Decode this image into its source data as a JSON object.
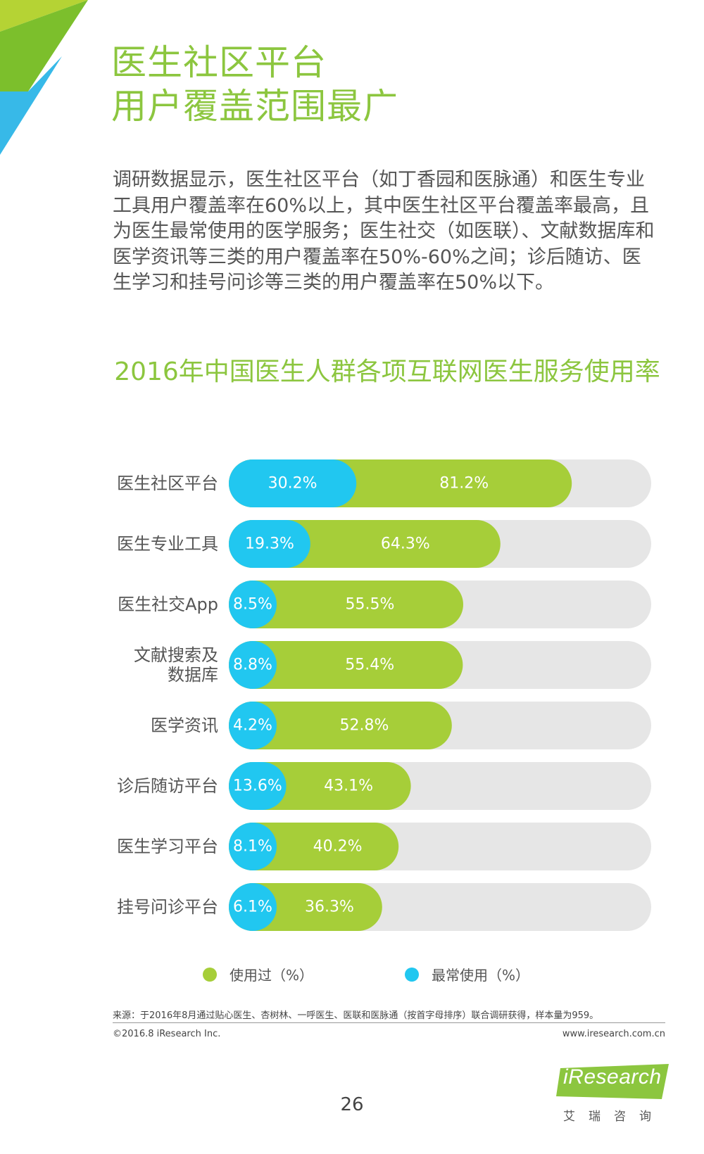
{
  "page": {
    "title_line1": "医生社区平台",
    "title_line2": "用户覆盖范围最广",
    "description": "调研数据显示，医生社区平台（如丁香园和医脉通）和医生专业工具用户覆盖率在60%以上，其中医生社区平台覆盖率最高，且为医生最常使用的医学服务；医生社交（如医联）、文献数据库和医学资讯等三类的用户覆盖率在50%-60%之间；诊后随访、医生学习和挂号问诊等三类的用户覆盖率在50%以下。",
    "chart_title": "2016年中国医生人群各项互联网医生服务使用率",
    "source": "来源：于2016年8月通过贴心医生、杏树林、一呼医生、医联和医脉通（按首字母排序）联合调研获得，样本量为959。",
    "copyright": "©2016.8 iResearch Inc.",
    "website": "www.iresearch.com.cn",
    "page_number": "26",
    "logo_text": "iResearch",
    "logo_subtext": "艾瑞咨询"
  },
  "colors": {
    "green": "#a6ce39",
    "blue": "#21c7f0",
    "track": "#e6e6e6",
    "title_green": "#8cc63f",
    "corner_light_green": "#b5d334",
    "corner_dark_green": "#7cbf2c",
    "corner_blue": "#37b9e8"
  },
  "chart_data": {
    "type": "bar",
    "orientation": "horizontal",
    "categories": [
      "医生社区平台",
      "医生专业工具",
      "医生社交App",
      "文献搜索及数据库",
      "医学资讯",
      "诊后随访平台",
      "医生学习平台",
      "挂号问诊平台"
    ],
    "category_lines": [
      [
        "医生社区平台"
      ],
      [
        "医生专业工具"
      ],
      [
        "医生社交App"
      ],
      [
        "文献搜索及",
        "数据库"
      ],
      [
        "医学资讯"
      ],
      [
        "诊后随访平台"
      ],
      [
        "医生学习平台"
      ],
      [
        "挂号问诊平台"
      ]
    ],
    "series": [
      {
        "name": "使用过（%）",
        "values": [
          81.2,
          64.3,
          55.5,
          55.4,
          52.8,
          43.1,
          40.2,
          36.3
        ],
        "labels": [
          "81.2%",
          "64.3%",
          "55.5%",
          "55.4%",
          "52.8%",
          "43.1%",
          "40.2%",
          "36.3%"
        ],
        "color": "#a6ce39"
      },
      {
        "name": "最常使用（%）",
        "values": [
          30.2,
          19.3,
          8.5,
          8.8,
          4.2,
          13.6,
          8.1,
          6.1
        ],
        "labels": [
          "30.2%",
          "19.3%",
          "8.5%",
          "8.8%",
          "4.2%",
          "13.6%",
          "8.1%",
          "6.1%"
        ],
        "color": "#21c7f0"
      }
    ],
    "xlim": [
      0,
      100
    ],
    "legend_position": "bottom"
  }
}
